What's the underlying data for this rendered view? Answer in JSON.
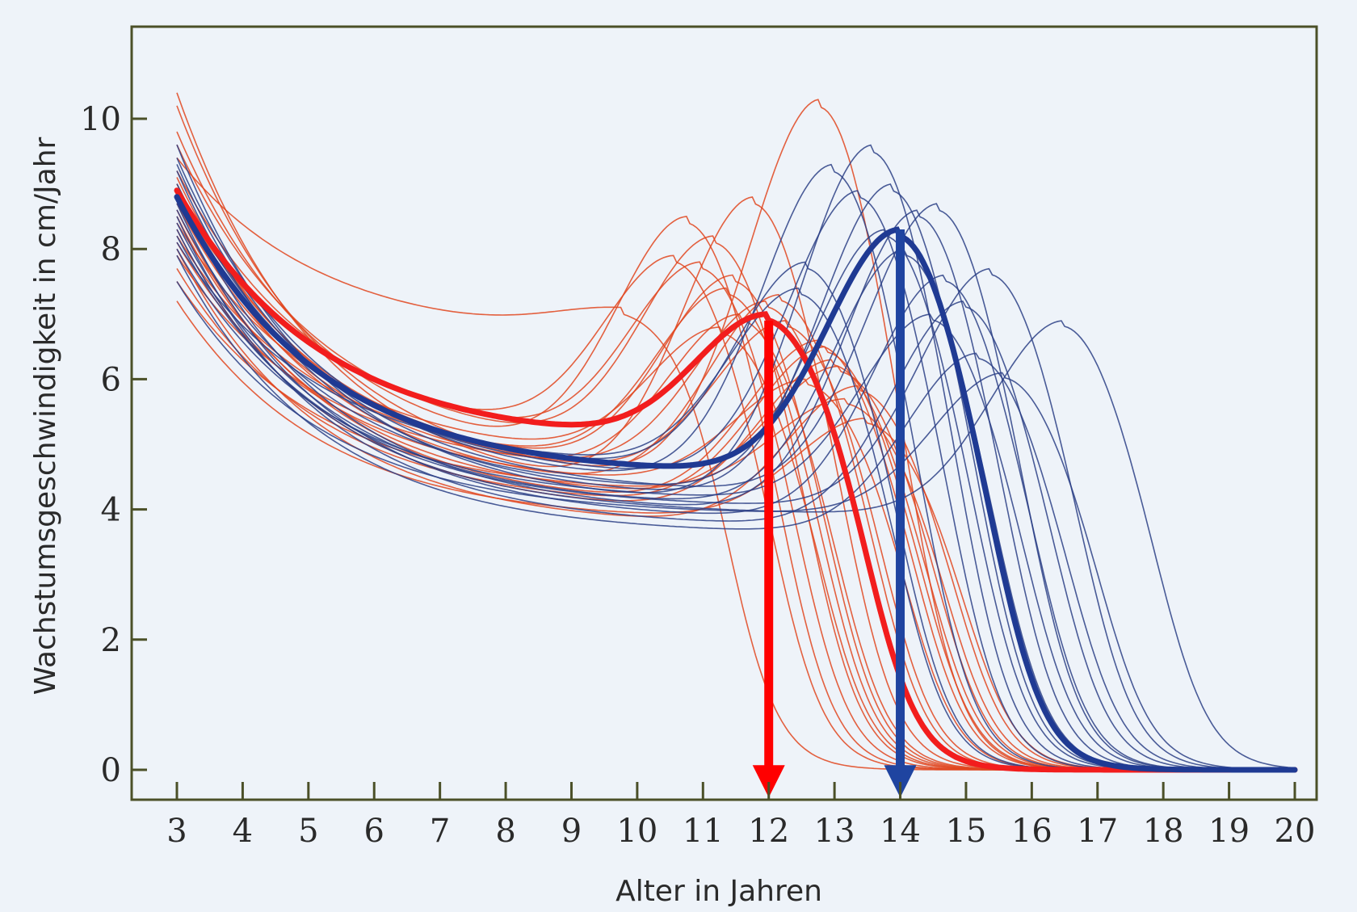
{
  "chart_data": {
    "type": "line",
    "title": "",
    "xlabel": "Alter in Jahren",
    "ylabel": "Wachstumsgeschwindigkeit in cm/Jahr",
    "xlim": [
      3,
      20
    ],
    "ylim": [
      0,
      11
    ],
    "x_ticks": [
      3,
      4,
      5,
      6,
      7,
      8,
      9,
      10,
      11,
      12,
      13,
      14,
      15,
      16,
      17,
      18,
      19,
      20
    ],
    "y_ticks": [
      0,
      2,
      4,
      6,
      8,
      10
    ],
    "grid": false,
    "legend": "none",
    "colors": {
      "girls": "#e0451f",
      "boys": "#2b3f86",
      "girls_mean": "#f21d1d",
      "boys_mean": "#1f3a93",
      "arrow_girls": "#ff0000",
      "arrow_boys": "#1f44a0"
    },
    "girl_curves": [
      {
        "start": 10.4,
        "floor": 4.1,
        "floor_age": 11.2,
        "peak": 8.8,
        "peak_age": 11.8
      },
      {
        "start": 10.2,
        "floor": 4.3,
        "floor_age": 10.5,
        "peak": 10.3,
        "peak_age": 12.8
      },
      {
        "start": 9.8,
        "floor": 4.6,
        "floor_age": 9.5,
        "peak": 8.5,
        "peak_age": 10.8
      },
      {
        "start": 9.6,
        "floor": 4.8,
        "floor_age": 9.8,
        "peak": 8.2,
        "peak_age": 11.2
      },
      {
        "start": 9.4,
        "floor": 6.6,
        "floor_age": 7.5,
        "peak": 7.1,
        "peak_age": 9.8
      },
      {
        "start": 9.2,
        "floor": 4.9,
        "floor_age": 9.5,
        "peak": 7.8,
        "peak_age": 11.0
      },
      {
        "start": 9.0,
        "floor": 4.5,
        "floor_age": 10.0,
        "peak": 7.6,
        "peak_age": 11.5
      },
      {
        "start": 8.9,
        "floor": 4.2,
        "floor_age": 10.5,
        "peak": 7.3,
        "peak_age": 12.2
      },
      {
        "start": 8.7,
        "floor": 4.4,
        "floor_age": 10.0,
        "peak": 7.0,
        "peak_age": 11.6
      },
      {
        "start": 8.6,
        "floor": 4.0,
        "floor_age": 11.0,
        "peak": 6.6,
        "peak_age": 12.8
      },
      {
        "start": 8.4,
        "floor": 4.7,
        "floor_age": 9.2,
        "peak": 6.8,
        "peak_age": 11.3
      },
      {
        "start": 8.3,
        "floor": 3.9,
        "floor_age": 11.3,
        "peak": 6.3,
        "peak_age": 13.0
      },
      {
        "start": 8.2,
        "floor": 4.6,
        "floor_age": 9.7,
        "peak": 7.4,
        "peak_age": 11.4
      },
      {
        "start": 8.1,
        "floor": 4.3,
        "floor_age": 10.2,
        "peak": 6.0,
        "peak_age": 12.6
      },
      {
        "start": 8.0,
        "floor": 3.7,
        "floor_age": 11.2,
        "peak": 5.9,
        "peak_age": 13.4
      },
      {
        "start": 7.9,
        "floor": 4.5,
        "floor_age": 10.2,
        "peak": 7.2,
        "peak_age": 12.0
      },
      {
        "start": 7.7,
        "floor": 4.0,
        "floor_age": 10.8,
        "peak": 6.5,
        "peak_age": 12.9
      },
      {
        "start": 7.5,
        "floor": 4.2,
        "floor_age": 10.5,
        "peak": 5.7,
        "peak_age": 13.2
      },
      {
        "start": 7.2,
        "floor": 3.8,
        "floor_age": 10.8,
        "peak": 5.4,
        "peak_age": 13.5
      },
      {
        "start": 8.8,
        "floor": 5.0,
        "floor_age": 9.0,
        "peak": 7.9,
        "peak_age": 10.6
      },
      {
        "start": 9.1,
        "floor": 4.4,
        "floor_age": 10.4,
        "peak": 6.9,
        "peak_age": 12.3
      },
      {
        "start": 8.5,
        "floor": 4.1,
        "floor_age": 10.9,
        "peak": 6.2,
        "peak_age": 13.1
      }
    ],
    "boy_curves": [
      {
        "start": 9.6,
        "floor": 4.0,
        "floor_age": 12.0,
        "peak": 9.6,
        "peak_age": 13.6
      },
      {
        "start": 9.4,
        "floor": 4.3,
        "floor_age": 11.4,
        "peak": 9.3,
        "peak_age": 13.0
      },
      {
        "start": 9.2,
        "floor": 4.1,
        "floor_age": 12.3,
        "peak": 9.0,
        "peak_age": 13.9
      },
      {
        "start": 9.0,
        "floor": 4.4,
        "floor_age": 11.5,
        "peak": 8.9,
        "peak_age": 13.4
      },
      {
        "start": 8.9,
        "floor": 3.9,
        "floor_age": 12.6,
        "peak": 8.6,
        "peak_age": 14.3
      },
      {
        "start": 8.8,
        "floor": 4.5,
        "floor_age": 11.0,
        "peak": 7.8,
        "peak_age": 12.6
      },
      {
        "start": 8.7,
        "floor": 3.8,
        "floor_age": 12.8,
        "peak": 7.6,
        "peak_age": 14.7
      },
      {
        "start": 8.6,
        "floor": 4.2,
        "floor_age": 11.8,
        "peak": 8.3,
        "peak_age": 13.8
      },
      {
        "start": 8.5,
        "floor": 3.7,
        "floor_age": 13.0,
        "peak": 7.2,
        "peak_age": 15.0
      },
      {
        "start": 8.4,
        "floor": 4.0,
        "floor_age": 12.2,
        "peak": 8.0,
        "peak_age": 14.1
      },
      {
        "start": 8.3,
        "floor": 3.9,
        "floor_age": 13.5,
        "peak": 6.9,
        "peak_age": 16.5
      },
      {
        "start": 8.1,
        "floor": 4.6,
        "floor_age": 10.8,
        "peak": 7.4,
        "peak_age": 12.5
      },
      {
        "start": 8.0,
        "floor": 4.1,
        "floor_age": 12.5,
        "peak": 7.0,
        "peak_age": 14.5
      },
      {
        "start": 7.9,
        "floor": 3.6,
        "floor_age": 12.5,
        "peak": 6.4,
        "peak_age": 15.2
      },
      {
        "start": 7.5,
        "floor": 3.9,
        "floor_age": 13.0,
        "peak": 6.1,
        "peak_age": 15.6
      },
      {
        "start": 9.3,
        "floor": 4.2,
        "floor_age": 12.0,
        "peak": 8.7,
        "peak_age": 14.6
      },
      {
        "start": 8.2,
        "floor": 4.0,
        "floor_age": 12.6,
        "peak": 7.7,
        "peak_age": 15.4
      }
    ],
    "series": [
      {
        "name": "",
        "role": "girls-mean",
        "peak_age": 12.0,
        "peak": 7.0,
        "floor": 5.0,
        "floor_age": 9.5,
        "start": 8.9
      },
      {
        "name": "",
        "role": "boys-mean",
        "peak_age": 14.0,
        "peak": 8.3,
        "floor": 4.5,
        "floor_age": 11.2,
        "start": 8.8
      }
    ],
    "annotations": [
      {
        "type": "arrow",
        "color": "red",
        "x": 12,
        "from_y": 6.9,
        "to_y": -0.4
      },
      {
        "type": "arrow",
        "color": "blue",
        "x": 14,
        "from_y": 8.3,
        "to_y": -0.4
      }
    ]
  }
}
